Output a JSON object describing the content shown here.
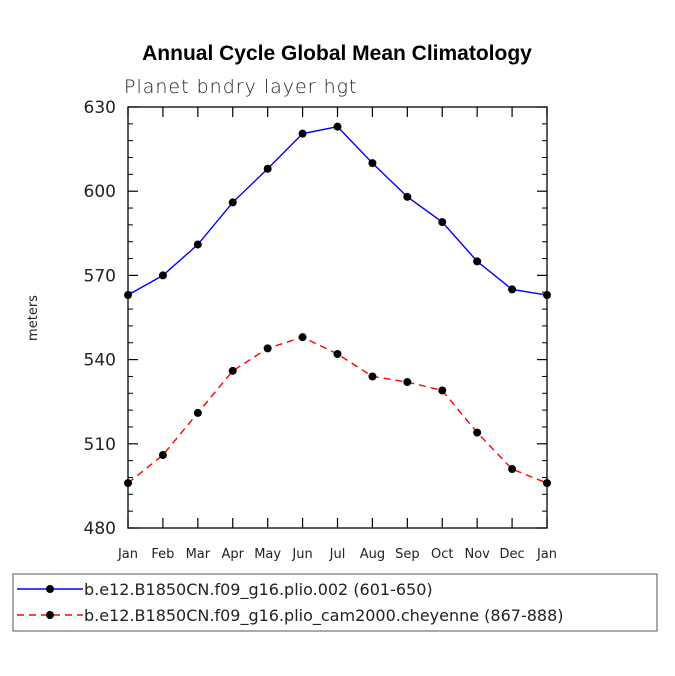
{
  "chart_data": {
    "type": "line",
    "title": "Annual Cycle Global Mean Climatology",
    "subtitle": "Planet bndry layer hgt",
    "xlabel": "",
    "ylabel": "meters",
    "categories": [
      "Jan",
      "Feb",
      "Mar",
      "Apr",
      "May",
      "Jun",
      "Jul",
      "Aug",
      "Sep",
      "Oct",
      "Nov",
      "Dec",
      "Jan"
    ],
    "ylim": [
      480,
      630
    ],
    "yticks": [
      480,
      510,
      540,
      570,
      600,
      630
    ],
    "ytick_labels": [
      "480",
      "510",
      "540",
      "570",
      "600",
      "630"
    ],
    "grid": false,
    "legend_position": "bottom",
    "series": [
      {
        "name": "b.e12.B1850CN.f09_g16.plio.002 (601-650)",
        "color": "#0000ff",
        "style": "solid",
        "marker": "circle",
        "values": [
          563,
          570,
          581,
          596,
          608,
          620.5,
          623,
          610,
          598,
          589,
          575,
          565,
          563
        ]
      },
      {
        "name": "b.e12.B1850CN.f09_g16.plio_cam2000.cheyenne (867-888)",
        "color": "#ff0000",
        "style": "dashed",
        "marker": "circle",
        "values": [
          496,
          506,
          521,
          536,
          544,
          548,
          542,
          534,
          532,
          529,
          514,
          501,
          496
        ]
      }
    ]
  }
}
